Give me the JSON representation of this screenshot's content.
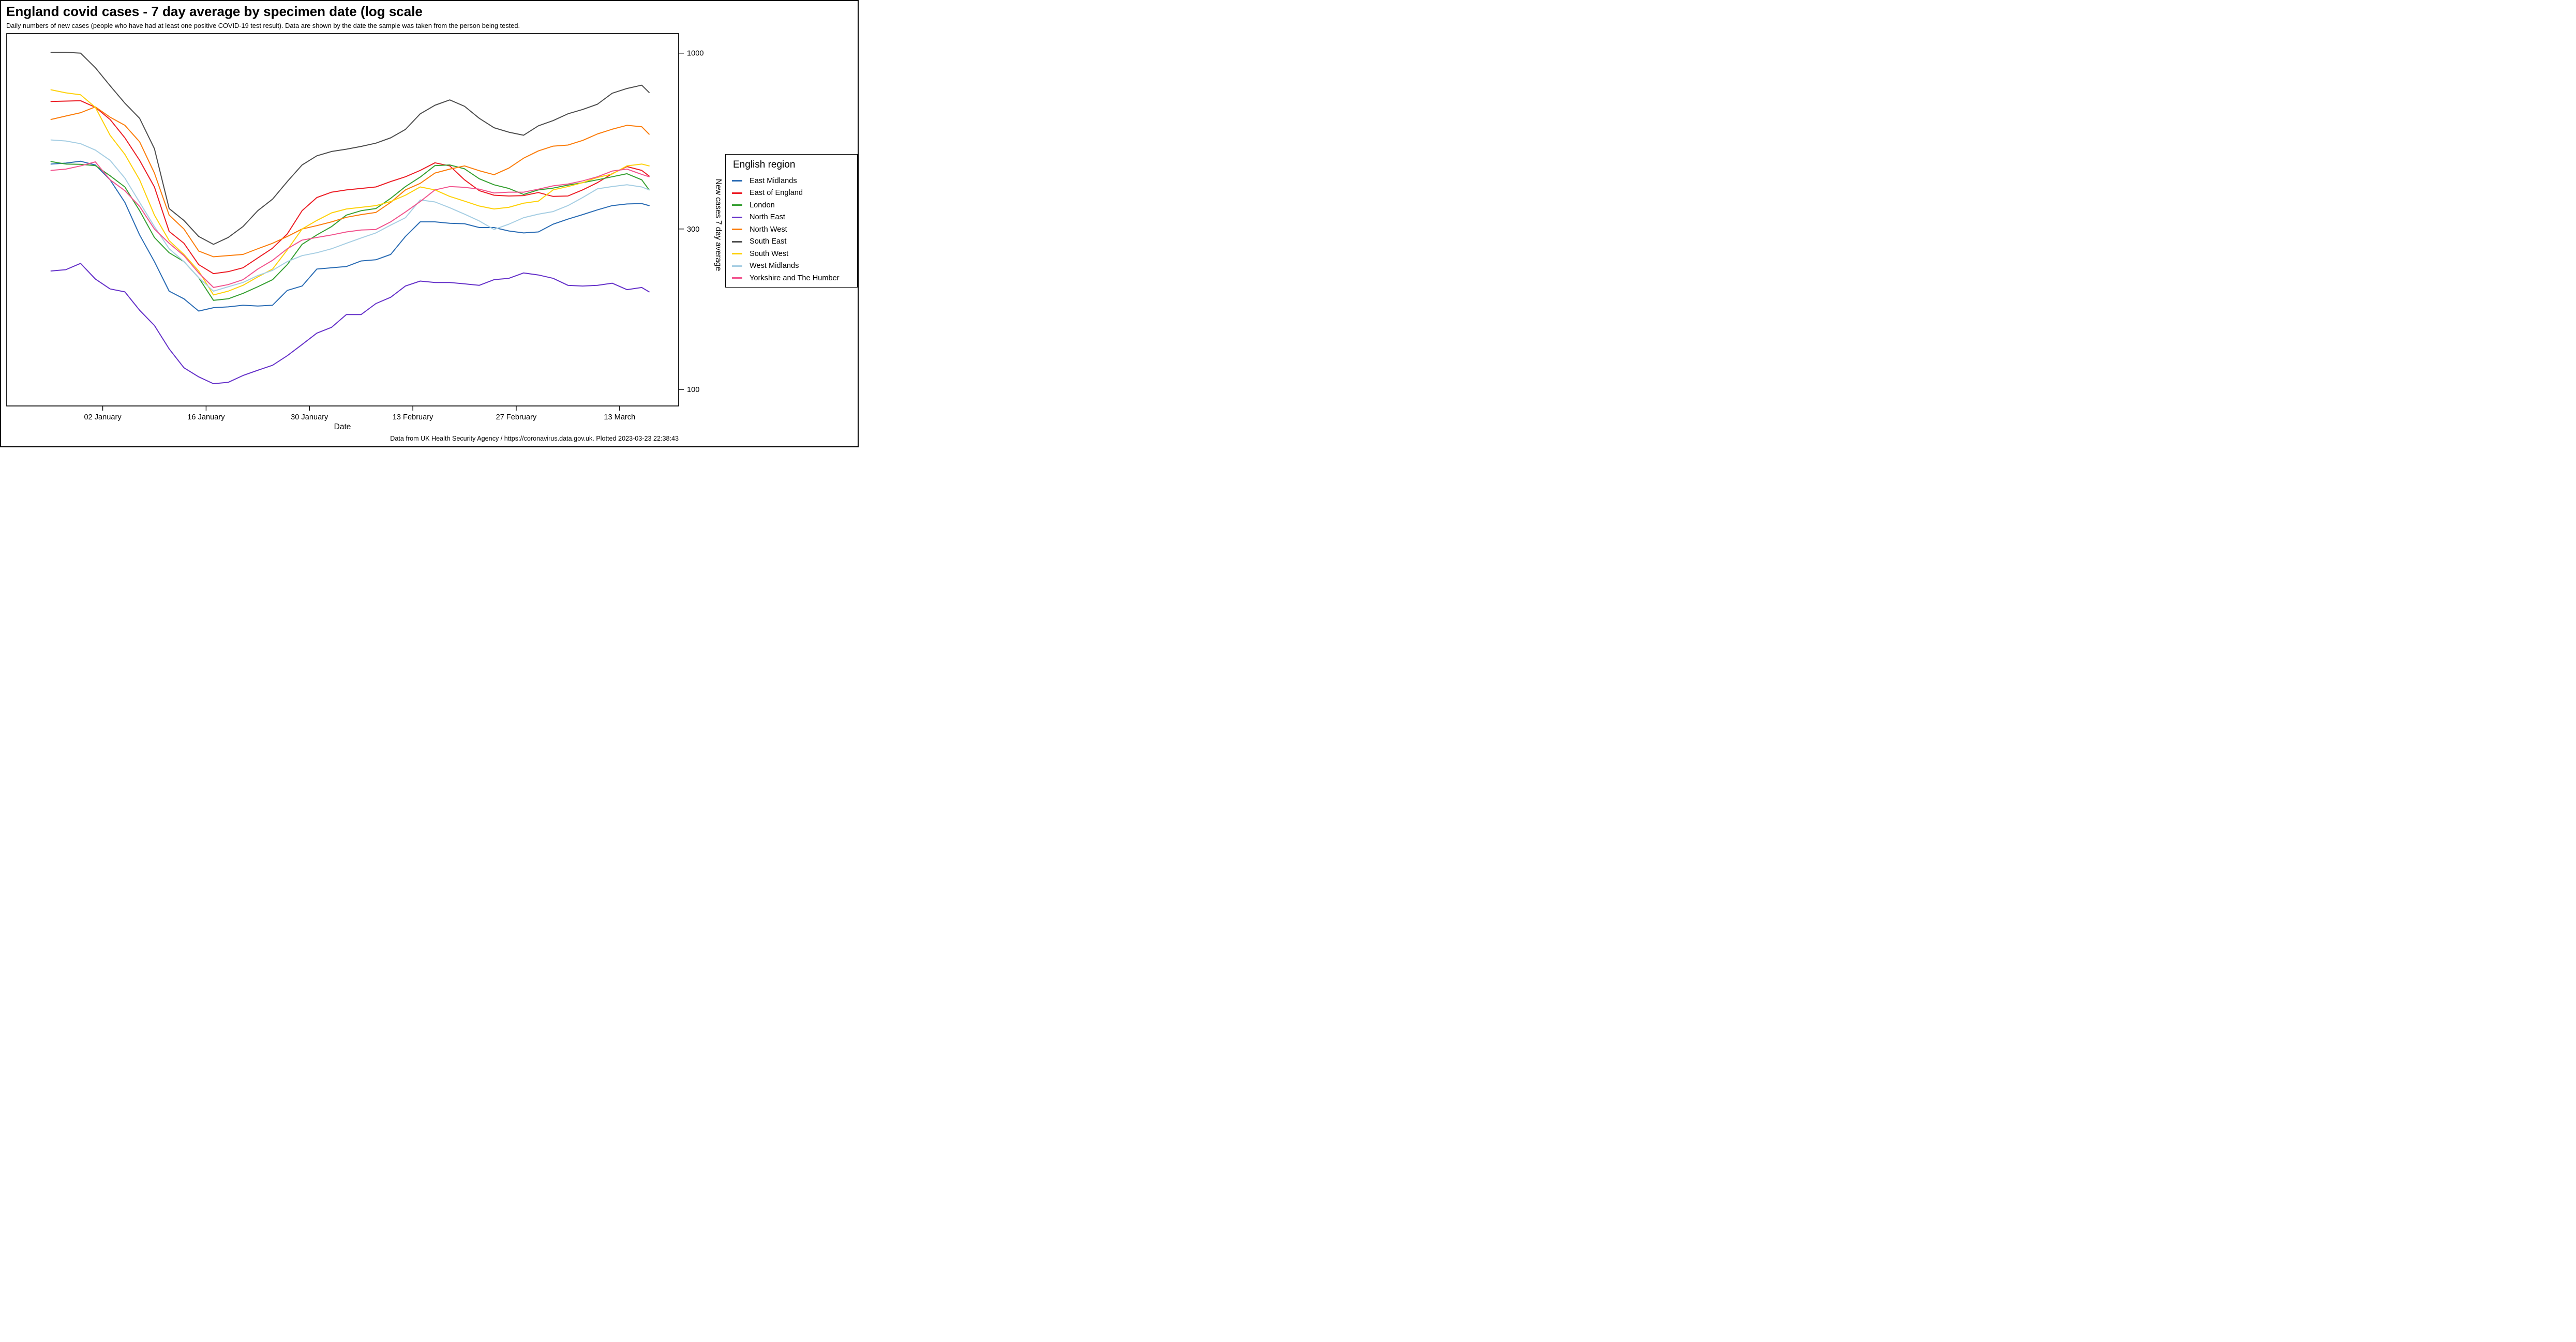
{
  "footer": {
    "text": "Data from UK Health Security Agency / https://coronavirus.data.gov.uk. Plotted 2023-03-23 22:38:43"
  },
  "chart_data": {
    "type": "line",
    "title": "England covid cases - 7 day average by specimen date (log scale",
    "subtitle": "Daily numbers of new cases (people who have had at least one positive COVID-19 test result). Data are shown by the date the sample was taken from the person being tested.",
    "xlabel": "Date",
    "ylabel": "New cases 7 day average",
    "legend_title": "English region",
    "legend_position": "right",
    "grid": false,
    "x_scale": "date",
    "y_scale": "log10",
    "x_domain": [
      "2022-12-20",
      "2023-03-21"
    ],
    "y_domain": [
      89.3,
      1143
    ],
    "y_ticks": [
      {
        "value": 1000,
        "label": "1000"
      },
      {
        "value": 300,
        "label": "300"
      },
      {
        "value": 100,
        "label": "100"
      }
    ],
    "x_ticks": [
      {
        "date": "2023-01-02",
        "label": "02 January"
      },
      {
        "date": "2023-01-16",
        "label": "16 January"
      },
      {
        "date": "2023-01-30",
        "label": "30 January"
      },
      {
        "date": "2023-02-13",
        "label": "13 February"
      },
      {
        "date": "2023-02-27",
        "label": "27 February"
      },
      {
        "date": "2023-03-13",
        "label": "13 March"
      }
    ],
    "x": [
      "2022-12-26",
      "2022-12-28",
      "2022-12-30",
      "2023-01-01",
      "2023-01-03",
      "2023-01-05",
      "2023-01-07",
      "2023-01-09",
      "2023-01-11",
      "2023-01-13",
      "2023-01-15",
      "2023-01-17",
      "2023-01-19",
      "2023-01-21",
      "2023-01-23",
      "2023-01-25",
      "2023-01-27",
      "2023-01-29",
      "2023-01-31",
      "2023-02-02",
      "2023-02-04",
      "2023-02-06",
      "2023-02-08",
      "2023-02-10",
      "2023-02-12",
      "2023-02-14",
      "2023-02-16",
      "2023-02-18",
      "2023-02-20",
      "2023-02-22",
      "2023-02-24",
      "2023-02-26",
      "2023-02-28",
      "2023-03-02",
      "2023-03-04",
      "2023-03-06",
      "2023-03-08",
      "2023-03-10",
      "2023-03-12",
      "2023-03-14",
      "2023-03-16",
      "2023-03-17"
    ],
    "series": [
      {
        "id": "east-midlands",
        "name": "East Midlands",
        "color": "#2a6cb4",
        "values": [
          468,
          471,
          477,
          465,
          420,
          360,
          288,
          240,
          196,
          186,
          171,
          175,
          176,
          178,
          177,
          178,
          197,
          203,
          228,
          230,
          232,
          241,
          243,
          252,
          285,
          315,
          315,
          312,
          311,
          303,
          303,
          296,
          292,
          294,
          310,
          321,
          331,
          342,
          352,
          356,
          357,
          352
        ]
      },
      {
        "id": "east-of-england",
        "name": "East of England",
        "color": "#ec1c24",
        "values": [
          718,
          720,
          722,
          690,
          635,
          560,
          480,
          400,
          295,
          272,
          235,
          221,
          224,
          230,
          246,
          263,
          290,
          340,
          372,
          386,
          392,
          396,
          400,
          415,
          429,
          448,
          472,
          462,
          420,
          390,
          378,
          376,
          377,
          385,
          375,
          376,
          392,
          412,
          438,
          460,
          448,
          431
        ]
      },
      {
        "id": "london",
        "name": "London",
        "color": "#36a032",
        "values": [
          476,
          468,
          467,
          463,
          432,
          400,
          340,
          283,
          255,
          240,
          215,
          184,
          186,
          193,
          202,
          212,
          235,
          270,
          288,
          305,
          330,
          340,
          345,
          370,
          401,
          428,
          463,
          465,
          453,
          423,
          406,
          396,
          380,
          392,
          397,
          405,
          412,
          420,
          429,
          438,
          420,
          392
        ]
      },
      {
        "id": "north-east",
        "name": "North East",
        "color": "#6531c9",
        "values": [
          225,
          227,
          237,
          213,
          199,
          195,
          172,
          155,
          132,
          116,
          109,
          104,
          105,
          110,
          114,
          118,
          126,
          136,
          147,
          153,
          167,
          167,
          180,
          188,
          203,
          210,
          208,
          208,
          206,
          204,
          212,
          214,
          222,
          219,
          214,
          204,
          203,
          204,
          207,
          198,
          201,
          195
        ]
      },
      {
        "id": "north-west",
        "name": "North West",
        "color": "#fb7d0b",
        "values": [
          635,
          650,
          665,
          692,
          645,
          610,
          545,
          440,
          330,
          300,
          258,
          248,
          250,
          252,
          262,
          272,
          285,
          300,
          307,
          315,
          325,
          331,
          336,
          360,
          392,
          410,
          440,
          452,
          462,
          447,
          435,
          455,
          487,
          512,
          529,
          533,
          550,
          575,
          594,
          610,
          604,
          574
        ]
      },
      {
        "id": "south-east",
        "name": "South East",
        "color": "#4d4d4d",
        "values": [
          1005,
          1006,
          1000,
          905,
          800,
          710,
          640,
          520,
          345,
          318,
          285,
          270,
          283,
          305,
          340,
          368,
          415,
          465,
          495,
          510,
          518,
          528,
          540,
          560,
          593,
          660,
          700,
          726,
          695,
          640,
          600,
          582,
          570,
          608,
          630,
          660,
          680,
          705,
          760,
          785,
          803,
          764
        ]
      },
      {
        "id": "south-west",
        "name": "South West",
        "color": "#fed108",
        "values": [
          778,
          762,
          752,
          690,
          570,
          500,
          420,
          330,
          277,
          252,
          225,
          191,
          196,
          204,
          216,
          228,
          260,
          300,
          318,
          335,
          344,
          348,
          352,
          362,
          378,
          400,
          392,
          375,
          363,
          351,
          344,
          348,
          358,
          363,
          392,
          401,
          412,
          427,
          437,
          462,
          468,
          462
        ]
      },
      {
        "id": "west-midlands",
        "name": "West Midlands",
        "color": "#a6cee3",
        "values": [
          552,
          548,
          538,
          515,
          480,
          425,
          360,
          305,
          262,
          240,
          215,
          196,
          202,
          208,
          218,
          226,
          240,
          250,
          255,
          262,
          272,
          282,
          292,
          308,
          324,
          366,
          361,
          347,
          332,
          317,
          299,
          310,
          324,
          332,
          338,
          352,
          372,
          395,
          401,
          406,
          400,
          392
        ]
      },
      {
        "id": "yorkshire-and-the-humber",
        "name": "Yorkshire and The Humber",
        "color": "#f2548e",
        "values": [
          448,
          452,
          462,
          475,
          420,
          390,
          350,
          300,
          272,
          250,
          222,
          201,
          205,
          212,
          228,
          242,
          262,
          278,
          283,
          288,
          294,
          298,
          299,
          315,
          337,
          362,
          392,
          401,
          399,
          394,
          384,
          386,
          386,
          394,
          403,
          408,
          417,
          429,
          446,
          452,
          436,
          429
        ]
      }
    ]
  }
}
